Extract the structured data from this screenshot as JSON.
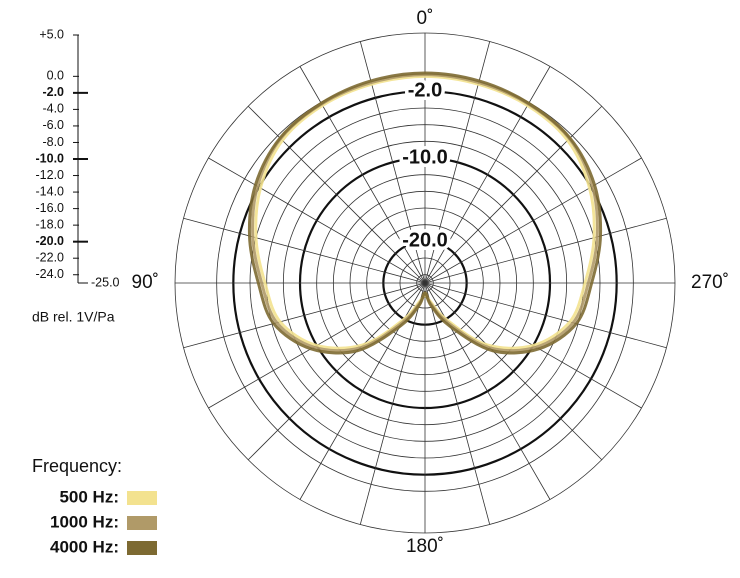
{
  "chart_data": {
    "type": "polar",
    "axis_label": "dB rel. 1V/Pa",
    "legend_title": "Frequency:",
    "ylim": [
      -25,
      5
    ],
    "yticks": [
      {
        "value": 5,
        "label": "+5.0"
      },
      {
        "value": 0,
        "label": "0.0"
      },
      {
        "value": -2,
        "label": "-2.0"
      },
      {
        "value": -4,
        "label": "-4.0"
      },
      {
        "value": -6,
        "label": "-6.0"
      },
      {
        "value": -8,
        "label": "-8.0"
      },
      {
        "value": -10,
        "label": "-10.0"
      },
      {
        "value": -12,
        "label": "-12.0"
      },
      {
        "value": -14,
        "label": "-14.0"
      },
      {
        "value": -16,
        "label": "-16.0"
      },
      {
        "value": -18,
        "label": "-18.0"
      },
      {
        "value": -20,
        "label": "-20.0"
      },
      {
        "value": -22,
        "label": "-22.0"
      },
      {
        "value": -24,
        "label": "-24.0"
      },
      {
        "value": -25,
        "label": "-25.0"
      }
    ],
    "ring_labels": [
      {
        "value": -2,
        "label": "-2.0"
      },
      {
        "value": -10,
        "label": "-10.0"
      },
      {
        "value": -20,
        "label": "-20.0"
      }
    ],
    "angle_ticks": [
      {
        "value": 0,
        "label": "0˚"
      },
      {
        "value": 90,
        "label": "90˚"
      },
      {
        "value": 180,
        "label": "180˚"
      },
      {
        "value": 270,
        "label": "270˚"
      }
    ],
    "x": [
      0,
      15,
      30,
      45,
      60,
      75,
      90,
      105,
      120,
      135,
      150,
      165,
      180,
      195,
      210,
      225,
      240,
      255,
      270,
      285,
      300,
      315,
      330,
      345
    ],
    "series": [
      {
        "name": "500 Hz:",
        "color": "#f3e28f",
        "values": [
          -0.2,
          -0.3,
          -0.4,
          -0.8,
          -2.2,
          -4.0,
          -5.8,
          -7.0,
          -10,
          -14.5,
          -20,
          -22.8,
          -23.5,
          -22.8,
          -20,
          -14.5,
          -10,
          -7.0,
          -5.8,
          -4.0,
          -2.2,
          -0.8,
          -0.4,
          -0.3
        ]
      },
      {
        "name": "1000 Hz:",
        "color": "#b09a68",
        "values": [
          0,
          -0.1,
          -0.2,
          -0.5,
          -1.8,
          -3.6,
          -5.4,
          -6.6,
          -9.6,
          -14,
          -19.5,
          -22.5,
          -23.8,
          -22.5,
          -19.5,
          -14,
          -9.6,
          -6.6,
          -5.4,
          -3.6,
          -1.8,
          -0.5,
          -0.2,
          -0.1
        ]
      },
      {
        "name": "4000 Hz:",
        "color": "#7d6a32",
        "values": [
          0.2,
          0.1,
          -0.1,
          -0.4,
          -1.5,
          -3.2,
          -5.0,
          -6.2,
          -9.2,
          -13.5,
          -19,
          -22.2,
          -23.8,
          -22.2,
          -19,
          -13.5,
          -9.2,
          -6.2,
          -5.0,
          -3.2,
          -1.5,
          -0.4,
          -0.1,
          0.1
        ]
      }
    ]
  }
}
